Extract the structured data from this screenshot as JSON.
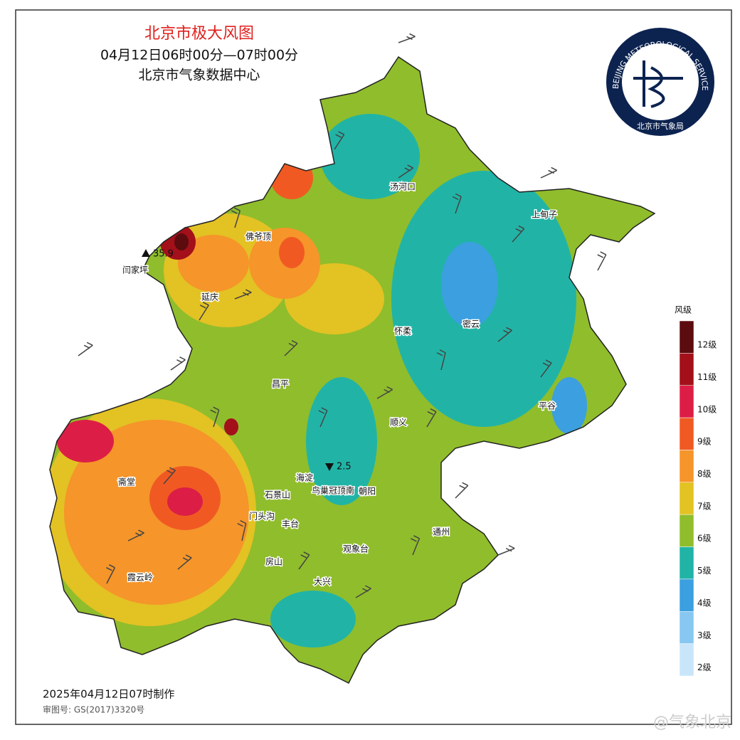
{
  "header": {
    "title": "北京市极大风图",
    "subtitle": "04月12日06时00分—07时00分",
    "source": "北京市气象数据中心"
  },
  "logo": {
    "ring": "BEIJING METEOROLOGICAL SERVICE",
    "name": "北京市气象局"
  },
  "places": [
    "汤河口",
    "上甸子",
    "佛爷顶",
    "延庆",
    "怀柔",
    "密云",
    "昌平",
    "平谷",
    "顺义",
    "斋堂",
    "海淀",
    "石景山",
    "朝阳",
    "门头沟",
    "丰台",
    "通州",
    "观象台",
    "房山",
    "大兴",
    "霞云岭"
  ],
  "stations": [
    {
      "name": "闫家坪",
      "value": "35.9"
    },
    {
      "name": "鸟巢冠顶南",
      "value": "2.5"
    }
  ],
  "legend": {
    "title": "风级",
    "levels": [
      "12级",
      "11级",
      "10级",
      "9级",
      "8级",
      "7级",
      "6级",
      "5级",
      "4级",
      "3级",
      "2级"
    ],
    "colors": [
      "#5c0b0e",
      "#a3101a",
      "#dc1e46",
      "#f05a22",
      "#f5952a",
      "#e3c223",
      "#90bd2c",
      "#21b4a6",
      "#3b9fe0",
      "#87c7f1",
      "#c9e5fa"
    ]
  },
  "footer": {
    "made": "2025年04月12日07时制作",
    "approval": "审图号: GS(2017)3320号",
    "watermark": "@气象北京"
  }
}
